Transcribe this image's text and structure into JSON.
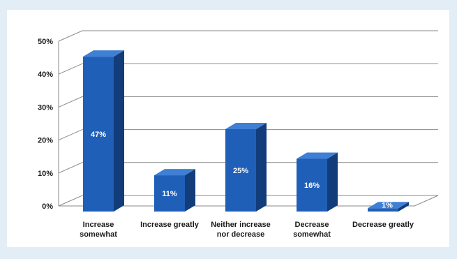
{
  "chart_data": {
    "type": "bar",
    "style": "3d-column",
    "categories": [
      [
        "Increase",
        "somewhat"
      ],
      [
        "Increase greatly"
      ],
      [
        "Neither increase",
        "nor decrease"
      ],
      [
        "Decrease",
        "somewhat"
      ],
      [
        "Decrease greatly"
      ]
    ],
    "values": [
      47,
      11,
      25,
      16,
      1
    ],
    "data_labels": [
      "47%",
      "11%",
      "25%",
      "16%",
      "1%"
    ],
    "ylim": [
      0,
      50
    ],
    "y_ticks": [
      0,
      10,
      20,
      30,
      40,
      50
    ],
    "y_tick_labels": [
      "0%",
      "10%",
      "20%",
      "30%",
      "40%",
      "50%"
    ],
    "grid": true,
    "legend": "none",
    "colors": {
      "bar_front": "#1f5fb8",
      "bar_side": "#123d7a",
      "bar_top": "#3f7fd6",
      "gridline": "#8a8a8a",
      "background": "#e3edf6"
    }
  }
}
